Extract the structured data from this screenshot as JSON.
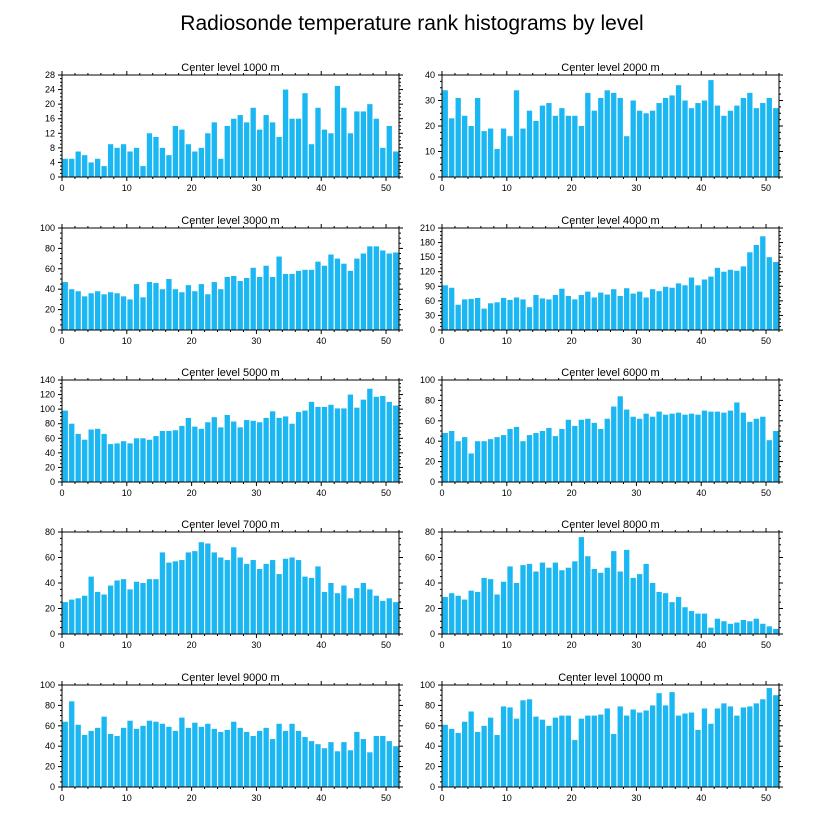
{
  "title": "Radiosonde temperature rank histograms by level",
  "bar_color": "#1ab7f2",
  "chart_data": [
    {
      "type": "bar",
      "title": "Center level 1000 m",
      "xlim": [
        0,
        52
      ],
      "ylim": [
        0,
        28
      ],
      "xticks": [
        0,
        10,
        20,
        30,
        40,
        50
      ],
      "yticks": [
        0,
        4,
        8,
        12,
        16,
        20,
        24,
        28
      ],
      "values": [
        5,
        5,
        7,
        6,
        4,
        5,
        3,
        9,
        8,
        9,
        7,
        8,
        3,
        12,
        11,
        8,
        6,
        14,
        13,
        9,
        7,
        8,
        12,
        15,
        5,
        14,
        16,
        17,
        15,
        19,
        13,
        17,
        15,
        11,
        24,
        16,
        16,
        23,
        9,
        19,
        13,
        12,
        25,
        19,
        12,
        18,
        18,
        20,
        16,
        8,
        14,
        7
      ]
    },
    {
      "type": "bar",
      "title": "Center level 2000 m",
      "xlim": [
        0,
        52
      ],
      "ylim": [
        0,
        40
      ],
      "xticks": [
        0,
        10,
        20,
        30,
        40,
        50
      ],
      "yticks": [
        0,
        10,
        20,
        30,
        40
      ],
      "values": [
        34,
        23,
        31,
        24,
        20,
        31,
        18,
        19,
        11,
        19,
        16,
        34,
        19,
        26,
        22,
        28,
        29,
        24,
        27,
        24,
        24,
        20,
        33,
        26,
        31,
        34,
        33,
        31,
        16,
        30,
        26,
        25,
        26,
        29,
        31,
        32,
        36,
        30,
        27,
        29,
        30,
        38,
        28,
        24,
        26,
        28,
        31,
        33,
        27,
        29,
        31,
        27
      ]
    },
    {
      "type": "bar",
      "title": "Center level 3000 m",
      "xlim": [
        0,
        52
      ],
      "ylim": [
        0,
        100
      ],
      "xticks": [
        0,
        10,
        20,
        30,
        40,
        50
      ],
      "yticks": [
        0,
        20,
        40,
        60,
        80,
        100
      ],
      "values": [
        47,
        40,
        38,
        33,
        36,
        38,
        35,
        37,
        36,
        33,
        30,
        45,
        32,
        47,
        46,
        40,
        50,
        40,
        37,
        44,
        38,
        45,
        35,
        47,
        40,
        52,
        53,
        48,
        51,
        61,
        52,
        63,
        52,
        72,
        55,
        55,
        58,
        59,
        59,
        67,
        63,
        74,
        70,
        65,
        58,
        70,
        75,
        82,
        82,
        78,
        75,
        76
      ]
    },
    {
      "type": "bar",
      "title": "Center level 4000 m",
      "xlim": [
        0,
        52
      ],
      "ylim": [
        0,
        210
      ],
      "xticks": [
        0,
        10,
        20,
        30,
        40,
        50
      ],
      "yticks": [
        0,
        30,
        60,
        90,
        120,
        150,
        180,
        210
      ],
      "values": [
        92,
        87,
        52,
        63,
        64,
        66,
        44,
        55,
        57,
        66,
        62,
        67,
        63,
        47,
        72,
        65,
        63,
        72,
        85,
        70,
        63,
        72,
        79,
        67,
        77,
        73,
        84,
        70,
        86,
        75,
        79,
        67,
        84,
        80,
        89,
        87,
        96,
        92,
        108,
        92,
        104,
        110,
        128,
        120,
        124,
        122,
        131,
        160,
        175,
        193,
        150,
        140
      ]
    },
    {
      "type": "bar",
      "title": "Center level 5000 m",
      "xlim": [
        0,
        52
      ],
      "ylim": [
        0,
        140
      ],
      "xticks": [
        0,
        10,
        20,
        30,
        40,
        50
      ],
      "yticks": [
        0,
        20,
        40,
        60,
        80,
        100,
        120,
        140
      ],
      "values": [
        98,
        80,
        66,
        58,
        72,
        73,
        66,
        52,
        53,
        56,
        53,
        60,
        60,
        58,
        63,
        70,
        70,
        71,
        77,
        88,
        76,
        73,
        82,
        89,
        75,
        92,
        83,
        75,
        85,
        84,
        82,
        88,
        97,
        88,
        90,
        80,
        96,
        98,
        110,
        103,
        103,
        106,
        101,
        101,
        120,
        102,
        113,
        128,
        117,
        118,
        110,
        105
      ]
    },
    {
      "type": "bar",
      "title": "Center level 6000 m",
      "xlim": [
        0,
        52
      ],
      "ylim": [
        0,
        100
      ],
      "xticks": [
        0,
        10,
        20,
        30,
        40,
        50
      ],
      "yticks": [
        0,
        20,
        40,
        60,
        80,
        100
      ],
      "values": [
        48,
        50,
        40,
        44,
        28,
        40,
        40,
        42,
        44,
        46,
        52,
        54,
        40,
        46,
        48,
        50,
        53,
        45,
        52,
        61,
        55,
        61,
        62,
        58,
        52,
        62,
        74,
        84,
        71,
        64,
        62,
        67,
        64,
        69,
        66,
        67,
        68,
        66,
        67,
        66,
        70,
        69,
        69,
        68,
        70,
        78,
        68,
        59,
        62,
        64,
        41,
        50
      ]
    },
    {
      "type": "bar",
      "title": "Center level 7000 m",
      "xlim": [
        0,
        52
      ],
      "ylim": [
        0,
        80
      ],
      "xticks": [
        0,
        10,
        20,
        30,
        40,
        50
      ],
      "yticks": [
        0,
        20,
        40,
        60,
        80
      ],
      "values": [
        25,
        27,
        28,
        30,
        45,
        33,
        31,
        38,
        42,
        43,
        35,
        41,
        40,
        43,
        43,
        64,
        56,
        57,
        58,
        64,
        65,
        72,
        71,
        64,
        60,
        58,
        68,
        60,
        55,
        58,
        51,
        55,
        58,
        47,
        59,
        60,
        58,
        45,
        44,
        53,
        33,
        40,
        32,
        38,
        28,
        36,
        40,
        35,
        30,
        26,
        28,
        25
      ]
    },
    {
      "type": "bar",
      "title": "Center level 8000 m",
      "xlim": [
        0,
        52
      ],
      "ylim": [
        0,
        80
      ],
      "xticks": [
        0,
        10,
        20,
        30,
        40,
        50
      ],
      "yticks": [
        0,
        20,
        40,
        60,
        80
      ],
      "values": [
        29,
        32,
        30,
        27,
        34,
        33,
        44,
        43,
        31,
        41,
        53,
        40,
        54,
        55,
        49,
        56,
        52,
        56,
        50,
        52,
        57,
        76,
        61,
        51,
        48,
        52,
        65,
        49,
        66,
        44,
        47,
        55,
        40,
        33,
        32,
        25,
        29,
        21,
        18,
        16,
        16,
        5,
        12,
        10,
        8,
        9,
        11,
        10,
        12,
        8,
        6,
        4
      ]
    },
    {
      "type": "bar",
      "title": "Center level 9000 m",
      "xlim": [
        0,
        52
      ],
      "ylim": [
        0,
        100
      ],
      "xticks": [
        0,
        10,
        20,
        30,
        40,
        50
      ],
      "yticks": [
        0,
        20,
        40,
        60,
        80,
        100
      ],
      "values": [
        64,
        84,
        61,
        51,
        55,
        58,
        69,
        52,
        50,
        58,
        65,
        57,
        60,
        65,
        64,
        62,
        59,
        55,
        68,
        58,
        63,
        59,
        62,
        57,
        54,
        56,
        64,
        58,
        54,
        50,
        55,
        58,
        47,
        62,
        55,
        62,
        55,
        49,
        45,
        42,
        38,
        44,
        35,
        44,
        36,
        54,
        47,
        34,
        50,
        50,
        45,
        40
      ]
    },
    {
      "type": "bar",
      "title": "Center level 10000 m",
      "xlim": [
        0,
        52
      ],
      "ylim": [
        0,
        100
      ],
      "xticks": [
        0,
        10,
        20,
        30,
        40,
        50
      ],
      "yticks": [
        0,
        20,
        40,
        60,
        80,
        100
      ],
      "values": [
        61,
        57,
        53,
        64,
        74,
        54,
        60,
        68,
        51,
        79,
        78,
        67,
        85,
        86,
        69,
        66,
        60,
        68,
        70,
        70,
        46,
        67,
        70,
        70,
        71,
        77,
        52,
        79,
        70,
        76,
        73,
        75,
        80,
        92,
        80,
        93,
        70,
        72,
        73,
        56,
        77,
        62,
        77,
        82,
        79,
        70,
        78,
        79,
        82,
        86,
        97,
        90
      ]
    }
  ]
}
